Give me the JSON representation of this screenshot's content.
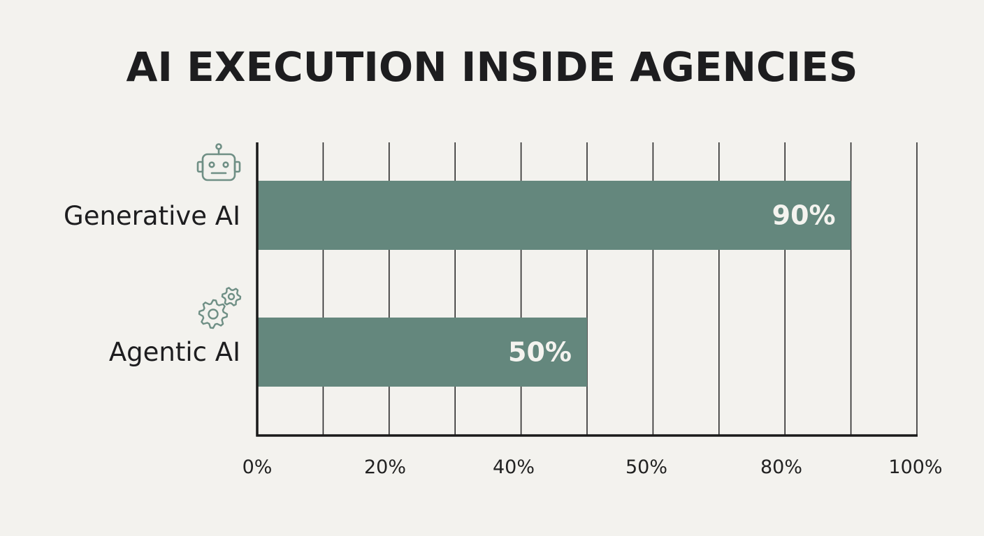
{
  "chart_data": {
    "type": "bar",
    "orientation": "horizontal",
    "title": "AI EXECUTION INSIDE AGENCIES",
    "categories": [
      "Generative AI",
      "Agentic AI"
    ],
    "category_icons": [
      "robot-icon",
      "gears-icon"
    ],
    "values": [
      90,
      50
    ],
    "value_labels": [
      "90%",
      "50%"
    ],
    "xlim": [
      0,
      100
    ],
    "tick_labels": [
      "0%",
      "20%",
      "40%",
      "50%",
      "80%",
      "100%"
    ],
    "grid": true,
    "bar_color": "#64877d",
    "icon_color": "#6f8f85",
    "axis_color": "#1a1a1a"
  }
}
